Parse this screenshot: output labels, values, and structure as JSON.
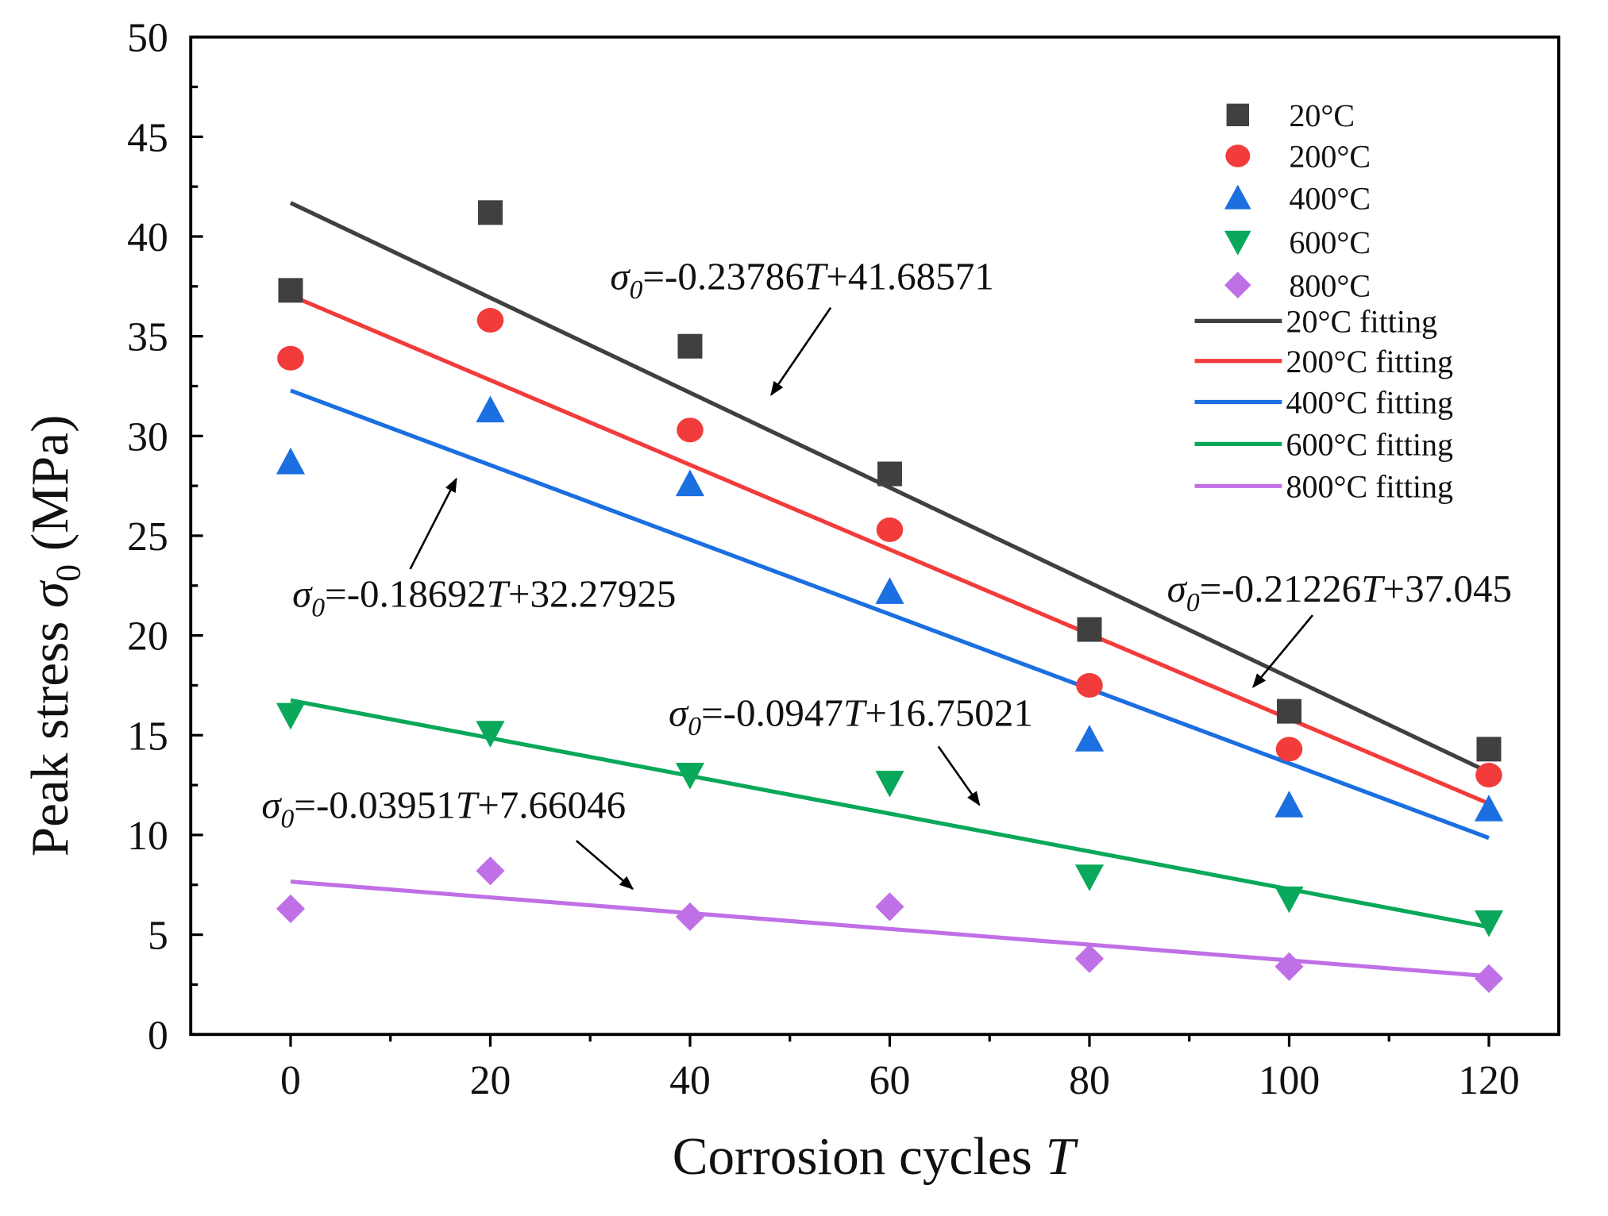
{
  "chart_data": {
    "type": "scatter",
    "title": "",
    "xlabel": {
      "text": "Corrosion cycles ",
      "var": "T"
    },
    "ylabel": {
      "text": "Peak stress ",
      "sym": "σ",
      "sub": "0",
      "unit": " (MPa)"
    },
    "xlim": [
      -10,
      127
    ],
    "ylim": [
      0,
      50
    ],
    "xticks": [
      0,
      20,
      40,
      60,
      80,
      100,
      120
    ],
    "yticks": [
      0,
      5,
      10,
      15,
      20,
      25,
      30,
      35,
      40,
      45,
      50
    ],
    "grid": false,
    "legend_position": "top-right",
    "x": [
      0,
      20,
      40,
      60,
      80,
      100,
      120
    ],
    "series": [
      {
        "name": "20°C",
        "marker": "square",
        "color": "#404040",
        "values": [
          37.3,
          41.2,
          34.5,
          28.1,
          20.3,
          16.2,
          14.3
        ],
        "fit": {
          "name": "20°C fitting",
          "slope": -0.23786,
          "intercept": 41.68571
        }
      },
      {
        "name": "200°C",
        "marker": "circle",
        "color": "#f23c3c",
        "values": [
          33.9,
          35.8,
          30.3,
          25.3,
          17.5,
          14.3,
          13.0
        ],
        "fit": {
          "name": "200°C fitting",
          "slope": -0.21226,
          "intercept": 37.045
        }
      },
      {
        "name": "400°C",
        "marker": "triangle-up",
        "color": "#1b6fe0",
        "values": [
          28.7,
          31.3,
          27.6,
          22.2,
          14.8,
          11.5,
          11.3
        ],
        "fit": {
          "name": "400°C fitting",
          "slope": -0.18692,
          "intercept": 32.27925
        }
      },
      {
        "name": "600°C",
        "marker": "triangle-down",
        "color": "#0aa85a",
        "values": [
          16.0,
          15.1,
          13.0,
          12.6,
          7.9,
          6.8,
          5.6
        ],
        "fit": {
          "name": "600°C fitting",
          "slope": -0.0947,
          "intercept": 16.75021
        }
      },
      {
        "name": "800°C",
        "marker": "diamond",
        "color": "#c070e6",
        "values": [
          6.3,
          8.2,
          5.9,
          6.4,
          3.8,
          3.4,
          2.8
        ],
        "fit": {
          "name": "800°C fitting",
          "slope": -0.03951,
          "intercept": 7.66046
        }
      }
    ],
    "annotations": [
      {
        "sym": "σ",
        "sub": "0",
        "eq": "=-0.23786",
        "var": "T",
        "rest": "+41.68571"
      },
      {
        "sym": "σ",
        "sub": "0",
        "eq": "=-0.18692",
        "var": "T",
        "rest": "+32.27925"
      },
      {
        "sym": "σ",
        "sub": "0",
        "eq": "=-0.21226",
        "var": "T",
        "rest": "+37.045"
      },
      {
        "sym": "σ",
        "sub": "0",
        "eq": "=-0.0947",
        "var": "T",
        "rest": "+16.75021"
      },
      {
        "sym": "σ",
        "sub": "0",
        "eq": "=-0.03951",
        "var": "T",
        "rest": "+7.66046"
      }
    ]
  }
}
